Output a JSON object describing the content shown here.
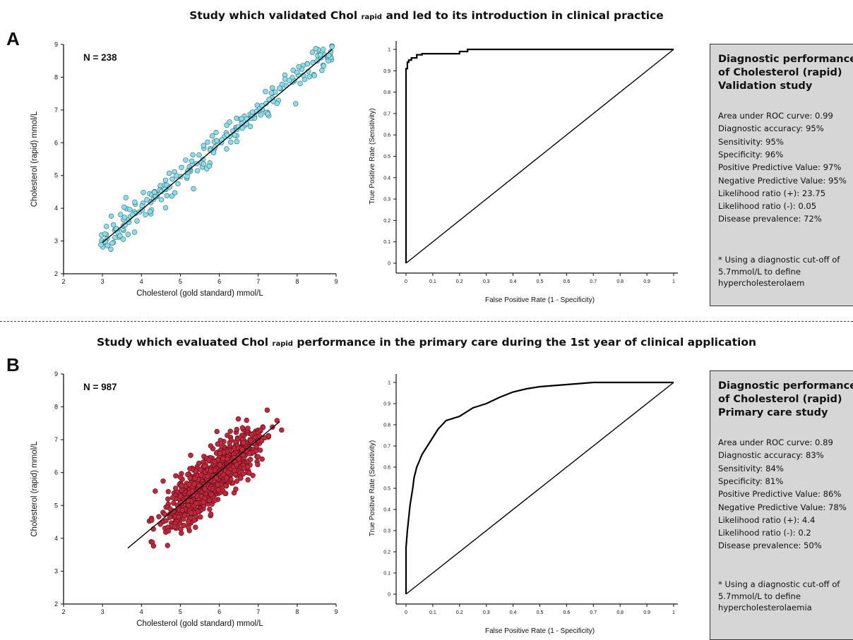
{
  "panels": [
    {
      "letter": "A",
      "title_pre": "Study which validated Chol ",
      "title_sub": "rapid",
      "title_post": " and led to its introduction in clinical practice",
      "box": {
        "title": "Diagnostic performance of Cholesterol (rapid) Validation study",
        "lines": [
          "Area under ROC curve: 0.99",
          "Diagnostic accuracy: 95%",
          "Sensitivity: 95%",
          "Specificity: 96%",
          "Positive Predictive Value: 97%",
          "Negative Predictive Value: 95%",
          "Likelihood ratio (+): 23.75",
          "Likelihood ratio (-): 0.05",
          "Disease prevalence: 72%"
        ],
        "note": "* Using a diagnostic cut-off of 5.7mmol/L to define hypercholesterolaem"
      }
    },
    {
      "letter": "B",
      "title_pre": "Study which evaluated Chol ",
      "title_sub": "rapid",
      "title_post": " performance in the primary care during the 1st year of clinical application",
      "box": {
        "title": "Diagnostic performance of Cholesterol (rapid) Primary care study",
        "lines": [
          "Area under ROC curve: 0.89",
          "Diagnostic accuracy: 83%",
          "Sensitivity: 84%",
          "Specificity: 81%",
          "Positive Predictive Value: 86%",
          "Negative Predictive Value: 78%",
          "Likelihood ratio (+): 4.4",
          "Likelihood ratio (-): 0.2",
          "Disease prevalence: 50%"
        ],
        "note": "* Using a diagnostic cut-off of 5.7mmol/L to define hypercholesterolaemia"
      }
    }
  ],
  "chart_data": [
    {
      "type": "scatter",
      "panel": "A",
      "annotation": "N = 238",
      "n_points": 238,
      "point_color": "#8fdce6",
      "point_edge": "#2a6f7a",
      "xlabel": "Cholesterol (gold standard) mmol/L",
      "ylabel": "Cholesterol (rapid) mmol/L",
      "xlim": [
        2,
        9
      ],
      "ylim": [
        2,
        9
      ],
      "xticks": [
        2,
        3,
        4,
        5,
        6,
        7,
        8,
        9
      ],
      "yticks": [
        2,
        3,
        4,
        5,
        6,
        7,
        8,
        9
      ],
      "x_range_of_points": [
        2.95,
        8.9
      ],
      "noise_sd": 0.22,
      "regression_line": [
        [
          3.0,
          2.95
        ],
        [
          8.9,
          8.85
        ]
      ],
      "grid": false
    },
    {
      "type": "line",
      "panel": "A",
      "xlabel": "False Positive Rate (1 - Specificity)",
      "ylabel": "True Positive Rate (Sensitivity)",
      "xlim": [
        0,
        1
      ],
      "ylim": [
        0,
        1
      ],
      "xticks": [
        0,
        0.1,
        0.2,
        0.3,
        0.4,
        0.5,
        0.6,
        0.7,
        0.8,
        0.9,
        1
      ],
      "yticks": [
        0,
        0.1,
        0.2,
        0.3,
        0.4,
        0.5,
        0.6,
        0.7,
        0.8,
        0.9,
        1
      ],
      "series": [
        {
          "role": "roc",
          "x": [
            0,
            0,
            0.005,
            0.005,
            0.01,
            0.01,
            0.02,
            0.02,
            0.04,
            0.04,
            0.06,
            0.06,
            0.2,
            0.2,
            0.23,
            0.23,
            1
          ],
          "y": [
            0,
            0.91,
            0.91,
            0.94,
            0.94,
            0.95,
            0.95,
            0.96,
            0.96,
            0.975,
            0.975,
            0.98,
            0.98,
            0.99,
            0.99,
            1,
            1
          ]
        },
        {
          "role": "diagonal",
          "x": [
            0,
            1
          ],
          "y": [
            0,
            1
          ]
        }
      ],
      "grid": false
    },
    {
      "type": "scatter",
      "panel": "B",
      "annotation": "N = 987",
      "n_points": 987,
      "point_color": "#c0283c",
      "point_edge": "#5a0d17",
      "xlabel": "Cholesterol (gold standard) mmol/L",
      "ylabel": "Cholesterol (rapid) mmol/L",
      "xlim": [
        2,
        9
      ],
      "ylim": [
        2,
        9
      ],
      "xticks": [
        2,
        3,
        4,
        5,
        6,
        7,
        8,
        9
      ],
      "yticks": [
        2,
        3,
        4,
        5,
        6,
        7,
        8,
        9
      ],
      "x_center": 5.85,
      "x_sd": 0.6,
      "noise_sd": 0.38,
      "regression_line": [
        [
          3.65,
          3.7
        ],
        [
          7.55,
          7.55
        ]
      ],
      "grid": false
    },
    {
      "type": "line",
      "panel": "B",
      "xlabel": "False Positive Rate (1 - Specificity)",
      "ylabel": "True Positive Rate (Sensitivity)",
      "xlim": [
        0,
        1
      ],
      "ylim": [
        0,
        1
      ],
      "xticks": [
        0,
        0.1,
        0.2,
        0.3,
        0.4,
        0.5,
        0.6,
        0.7,
        0.8,
        0.9,
        1
      ],
      "yticks": [
        0,
        0.1,
        0.2,
        0.3,
        0.4,
        0.5,
        0.6,
        0.7,
        0.8,
        0.9,
        1
      ],
      "series": [
        {
          "role": "roc",
          "x": [
            0,
            0,
            0.005,
            0.01,
            0.015,
            0.02,
            0.025,
            0.03,
            0.04,
            0.05,
            0.06,
            0.08,
            0.1,
            0.12,
            0.15,
            0.2,
            0.25,
            0.3,
            0.35,
            0.4,
            0.45,
            0.5,
            0.55,
            0.6,
            0.65,
            0.7,
            0.8,
            0.9,
            1
          ],
          "y": [
            0,
            0.22,
            0.3,
            0.36,
            0.42,
            0.46,
            0.5,
            0.55,
            0.6,
            0.63,
            0.66,
            0.7,
            0.74,
            0.78,
            0.82,
            0.84,
            0.88,
            0.9,
            0.93,
            0.955,
            0.97,
            0.98,
            0.985,
            0.99,
            0.995,
            1,
            1,
            1,
            1
          ]
        },
        {
          "role": "diagonal",
          "x": [
            0,
            1
          ],
          "y": [
            0,
            1
          ]
        }
      ],
      "grid": false
    }
  ]
}
